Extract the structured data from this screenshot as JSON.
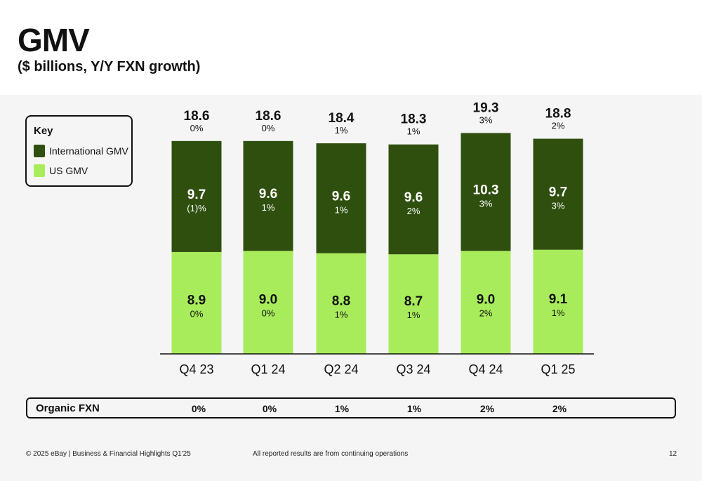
{
  "header": {
    "title": "GMV",
    "subtitle": "($ billions, Y/Y FXN growth)"
  },
  "key": {
    "title": "Key",
    "items": [
      {
        "label": "International GMV",
        "color": "#2f4f0f"
      },
      {
        "label": "US GMV",
        "color": "#a8ec5b"
      }
    ]
  },
  "chart_data": {
    "type": "bar",
    "stacked": true,
    "categories": [
      "Q4 23",
      "Q1 24",
      "Q2 24",
      "Q3 24",
      "Q4 24",
      "Q1 25"
    ],
    "series": [
      {
        "name": "US GMV",
        "color": "#a8ec5b",
        "values": [
          8.9,
          9.0,
          8.8,
          8.7,
          9.0,
          9.1
        ],
        "growth": [
          "0%",
          "0%",
          "1%",
          "1%",
          "2%",
          "1%"
        ]
      },
      {
        "name": "International GMV",
        "color": "#2f4f0f",
        "values": [
          9.7,
          9.6,
          9.6,
          9.6,
          10.3,
          9.7
        ],
        "growth": [
          "(1)%",
          "1%",
          "1%",
          "2%",
          "3%",
          "3%"
        ]
      }
    ],
    "totals": [
      18.6,
      18.6,
      18.4,
      18.3,
      19.3,
      18.8
    ],
    "total_growth": [
      "0%",
      "0%",
      "1%",
      "1%",
      "3%",
      "2%"
    ]
  },
  "organic_fxn": {
    "label": "Organic FXN",
    "values": [
      "0%",
      "0%",
      "1%",
      "1%",
      "2%",
      "2%"
    ]
  },
  "footer": {
    "left": "© 2025 eBay | Business & Financial Highlights Q1'25",
    "center": "All reported results are from continuing operations",
    "page": "12"
  }
}
